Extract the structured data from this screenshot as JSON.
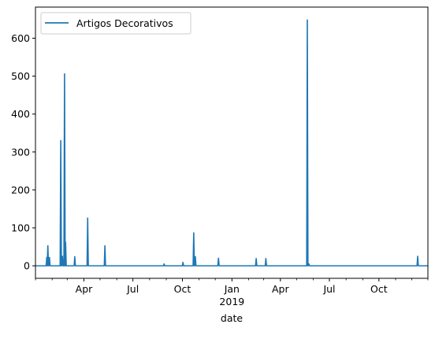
{
  "chart_data": {
    "type": "line",
    "title": "",
    "xlabel": "date",
    "ylabel": "",
    "x_type": "date",
    "xlim": [
      "2018-01-01",
      "2019-12-31"
    ],
    "ylim": [
      -33,
      682
    ],
    "grid": false,
    "legend_position": "top-left",
    "y_ticks": [
      0,
      100,
      200,
      300,
      400,
      500,
      600
    ],
    "x_major_ticks": [
      {
        "date": "2018-04-01",
        "label": "Apr"
      },
      {
        "date": "2018-07-01",
        "label": "Jul"
      },
      {
        "date": "2018-10-01",
        "label": "Oct"
      },
      {
        "date": "2019-01-01",
        "label": "Jan",
        "sublabel": "2019"
      },
      {
        "date": "2019-04-01",
        "label": "Apr"
      },
      {
        "date": "2019-07-01",
        "label": "Jul"
      },
      {
        "date": "2019-10-01",
        "label": "Oct"
      }
    ],
    "x_minor_ticks": [
      "2018-01-01",
      "2018-02-01",
      "2018-03-01",
      "2018-05-01",
      "2018-06-01",
      "2018-08-01",
      "2018-09-01",
      "2018-11-01",
      "2018-12-01",
      "2019-02-01",
      "2019-03-01",
      "2019-05-01",
      "2019-06-01",
      "2019-08-01",
      "2019-09-01",
      "2019-11-01",
      "2019-12-01",
      "2019-12-31"
    ],
    "series": [
      {
        "name": "Artigos Decorativos",
        "color": "#1f77b4",
        "points": [
          [
            "2018-01-22",
            22
          ],
          [
            "2018-01-24",
            53
          ],
          [
            "2018-01-27",
            22
          ],
          [
            "2018-02-17",
            330
          ],
          [
            "2018-02-20",
            25
          ],
          [
            "2018-02-24",
            506
          ],
          [
            "2018-02-26",
            62
          ],
          [
            "2018-03-15",
            24
          ],
          [
            "2018-04-08",
            126
          ],
          [
            "2018-05-10",
            53
          ],
          [
            "2018-08-28",
            5
          ],
          [
            "2018-10-02",
            9
          ],
          [
            "2018-10-22",
            87
          ],
          [
            "2018-10-25",
            24
          ],
          [
            "2018-12-07",
            20
          ],
          [
            "2019-02-15",
            19
          ],
          [
            "2019-03-05",
            19
          ],
          [
            "2019-05-21",
            648
          ],
          [
            "2019-05-24",
            5
          ],
          [
            "2019-12-12",
            25
          ]
        ]
      }
    ]
  }
}
